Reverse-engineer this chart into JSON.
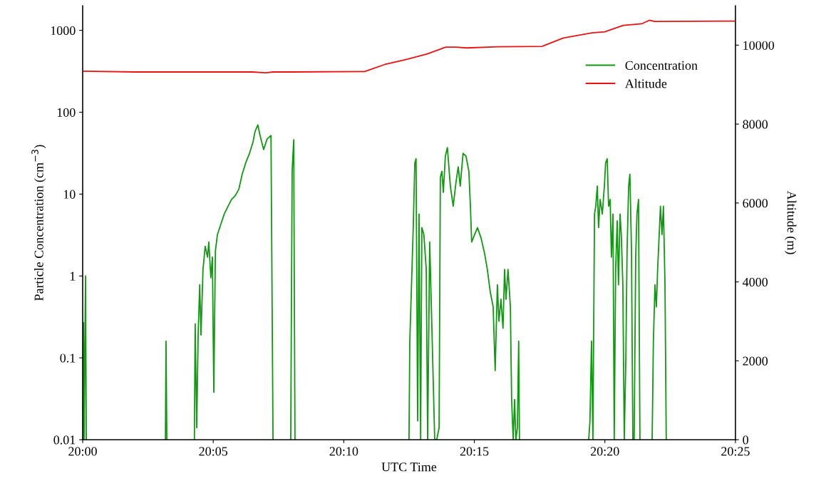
{
  "chart_data": {
    "type": "line",
    "xlabel": "UTC Time",
    "ylabel": "Particle Concentration (cm$^{−3}$)",
    "y2label": "Altitude (m)",
    "xlim": [
      20,
      20.41667
    ],
    "xticks": [
      {
        "value": 20,
        "label": "20:00"
      },
      {
        "value": 20.08333,
        "label": "20:05"
      },
      {
        "value": 20.16667,
        "label": "20:10"
      },
      {
        "value": 20.25,
        "label": "20:15"
      },
      {
        "value": 20.33333,
        "label": "20:20"
      },
      {
        "value": 20.41667,
        "label": "20:25"
      }
    ],
    "log": "y",
    "ylim": [
      0.01,
      2000
    ],
    "yticks": [
      0.01,
      0.1,
      1,
      10,
      100,
      1000
    ],
    "y2lim": [
      0,
      11000
    ],
    "y2ticks": [
      0,
      2000,
      4000,
      6000,
      8000,
      10000
    ],
    "grid": false,
    "legend": "top right",
    "line_style": "solid",
    "marker": "none",
    "series": [
      {
        "name": "Concentration",
        "color": "#119911",
        "x": [
          20.0,
          20.0005,
          20.0009,
          20.0018,
          20.0023,
          20.025,
          20.0528,
          20.0532,
          20.0537,
          20.0617,
          20.0713,
          20.0718,
          20.0728,
          20.0737,
          20.0747,
          20.0755,
          20.0768,
          20.0782,
          20.0797,
          20.0805,
          20.0818,
          20.0828,
          20.0837,
          20.0847,
          20.086,
          20.0882,
          20.0905,
          20.0928,
          20.095,
          20.0973,
          20.0997,
          20.1018,
          20.1042,
          20.1065,
          20.1087,
          20.11,
          20.1118,
          20.1132,
          20.1155,
          20.1177,
          20.1202,
          20.1215,
          20.1267,
          20.1328,
          20.1337,
          20.1347,
          20.1355,
          20.1667,
          20.2083,
          20.2088,
          20.2102,
          20.211,
          20.212,
          20.2128,
          20.2138,
          20.2147,
          20.2157,
          20.2165,
          20.2178,
          20.2193,
          20.2202,
          20.2215,
          20.2228,
          20.2247,
          20.226,
          20.2275,
          20.2283,
          20.2293,
          20.2302,
          20.2315,
          20.2328,
          20.2347,
          20.2365,
          20.2383,
          20.2397,
          20.241,
          20.2428,
          20.2447,
          20.2465,
          20.2475,
          20.2483,
          20.2502,
          20.252,
          20.2543,
          20.2565,
          20.2583,
          20.2602,
          20.262,
          20.2633,
          20.2647,
          20.2657,
          20.267,
          20.2683,
          20.2693,
          20.2702,
          20.2715,
          20.273,
          20.2738,
          20.2748,
          20.2757,
          20.2765,
          20.2775,
          20.2783,
          20.2788,
          20.3,
          20.323,
          20.3238,
          20.3248,
          20.3257,
          20.3267,
          20.3275,
          20.3285,
          20.3293,
          20.3303,
          20.3317,
          20.333,
          20.3338,
          20.3348,
          20.3357,
          20.3367,
          20.3375,
          20.3385,
          20.3393,
          20.3402,
          20.3412,
          20.342,
          20.343,
          20.3438,
          20.3448,
          20.3457,
          20.3467,
          20.3475,
          20.3485,
          20.3493,
          20.3503,
          20.3512,
          20.352,
          20.353,
          20.3538,
          20.3548,
          20.3557,
          20.36,
          20.3635,
          20.3643,
          20.3653,
          20.3662,
          20.367,
          20.368,
          20.3688,
          20.3698,
          20.3707,
          20.3717,
          20.3725
        ],
        "values": [
          0.01,
          0.27,
          0.01,
          1.0,
          0.01,
          null,
          0.01,
          0.16,
          0.01,
          null,
          0.01,
          0.26,
          0.014,
          0.19,
          0.78,
          0.19,
          1.2,
          2.3,
          1.7,
          2.6,
          0.95,
          1.7,
          0.038,
          2.0,
          3.2,
          4.3,
          5.8,
          7.1,
          8.6,
          9.5,
          11.5,
          17.5,
          24.5,
          31.5,
          43,
          58,
          70,
          52,
          35,
          47,
          52,
          0.01,
          null,
          0.01,
          19,
          46,
          0.01,
          null,
          0.01,
          0.16,
          1.2,
          3.9,
          24,
          27,
          0.017,
          5.7,
          0.01,
          3.9,
          3.2,
          1.2,
          0.01,
          2.6,
          0.28,
          0.01,
          0.01,
          0.014,
          16,
          19,
          10.5,
          29,
          37,
          12.5,
          7.1,
          14,
          21.5,
          12.5,
          31.5,
          29,
          19,
          7.1,
          2.6,
          3.2,
          3.9,
          2.9,
          1.9,
          1.2,
          0.63,
          0.42,
          0.07,
          0.78,
          0.28,
          0.52,
          0.23,
          1.2,
          0.52,
          1.2,
          0.42,
          0.031,
          0.01,
          0.031,
          0.01,
          0.014,
          0.16,
          0.01,
          null,
          0.01,
          0.017,
          0.16,
          0.01,
          5.7,
          7.1,
          12.5,
          3.9,
          8.6,
          5.7,
          12.5,
          24,
          27,
          7.1,
          8.6,
          1.7,
          5.7,
          0.01,
          1.2,
          4.7,
          0.78,
          5.7,
          3.2,
          0.78,
          0.01,
          0.095,
          2.1,
          12.5,
          17.5,
          2.1,
          0.01,
          0.01,
          1.7,
          5.7,
          8.6,
          0.01,
          null,
          0.01,
          0.16,
          0.78,
          0.42,
          1.2,
          3.2,
          7.1,
          3.2,
          7.1,
          0.78,
          0.01
        ]
      },
      {
        "name": "Altitude",
        "color": "#ee1111",
        "axis": "y2",
        "x": [
          20.0,
          20.0333,
          20.0667,
          20.1083,
          20.1167,
          20.1217,
          20.1333,
          20.18,
          20.1928,
          20.2067,
          20.22,
          20.2317,
          20.2383,
          20.245,
          20.265,
          20.2933,
          20.3067,
          20.325,
          20.3333,
          20.345,
          20.3567,
          20.3617,
          20.365,
          20.41667
        ],
        "values": [
          9340,
          9320,
          9320,
          9320,
          9300,
          9320,
          9320,
          9330,
          9510,
          9640,
          9780,
          9950,
          9950,
          9930,
          9960,
          9970,
          10180,
          10310,
          10340,
          10500,
          10540,
          10630,
          10600,
          10610
        ]
      }
    ]
  }
}
